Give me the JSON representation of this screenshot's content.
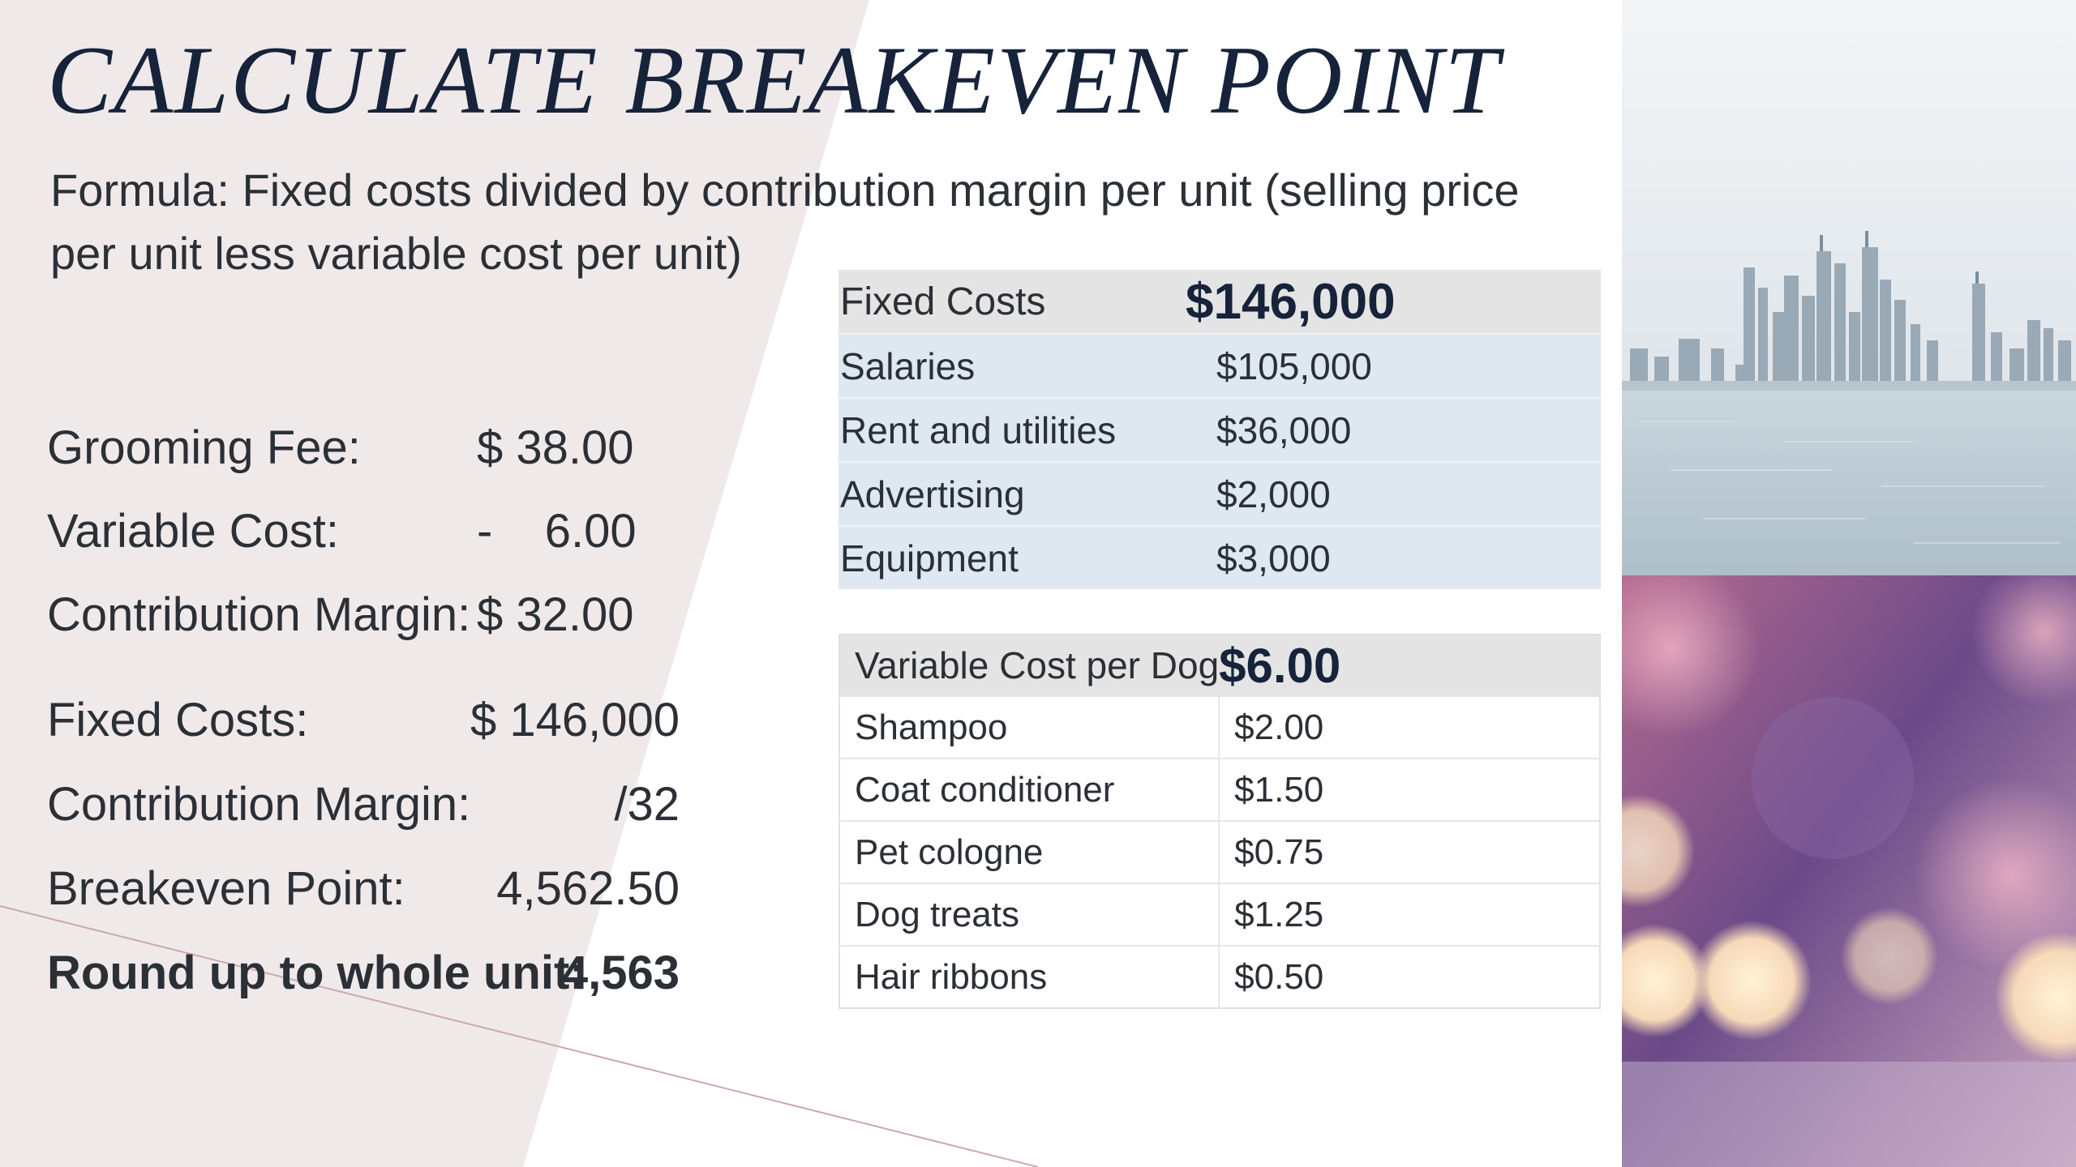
{
  "slide": {
    "title": "CALCULATE BREAKEVEN POINT",
    "formula": "Formula: Fixed costs divided by contribution margin per unit (selling price per unit less variable cost per unit)"
  },
  "calculation": {
    "grooming_fee": {
      "label": "Grooming Fee:",
      "value": "$ 38.00"
    },
    "variable_cost": {
      "label": "Variable Cost:",
      "value": "-    6.00"
    },
    "contribution_margin": {
      "label": "Contribution Margin:",
      "value": "$ 32.00"
    },
    "fixed_costs": {
      "label": "Fixed Costs:",
      "value": "$ 146,000"
    },
    "contribution_margin_divisor": {
      "label": "Contribution Margin:",
      "value": "/32"
    },
    "breakeven_point": {
      "label": "Breakeven Point:",
      "value": "4,562.50"
    },
    "round_up": {
      "label": "Round up to whole unit:",
      "value": "4,563"
    }
  },
  "fixed_costs_table": {
    "header": {
      "label": "Fixed Costs",
      "amount": "$146,000"
    },
    "rows": [
      {
        "name": "Salaries",
        "amount": "$105,000"
      },
      {
        "name": "Rent and utilities",
        "amount": "$36,000"
      },
      {
        "name": "Advertising",
        "amount": "$2,000"
      },
      {
        "name": "Equipment",
        "amount": "$3,000"
      }
    ]
  },
  "variable_cost_table": {
    "header": {
      "label": "Variable Cost per Dog",
      "amount": "$6.00"
    },
    "rows": [
      {
        "name": "Shampoo",
        "amount": "$2.00"
      },
      {
        "name": "Coat conditioner",
        "amount": "$1.50"
      },
      {
        "name": "Pet cologne",
        "amount": "$0.75"
      },
      {
        "name": "Dog treats",
        "amount": "$1.25"
      },
      {
        "name": "Hair ribbons",
        "amount": "$0.50"
      }
    ]
  },
  "images": {
    "top": "city-skyline-image",
    "bottom": "bokeh-lights-image"
  },
  "colors": {
    "title": "#16233a",
    "left_panel": "#efe9ea",
    "fixed_rows": "#dde8f0",
    "header_rows": "#e4e4e4"
  }
}
